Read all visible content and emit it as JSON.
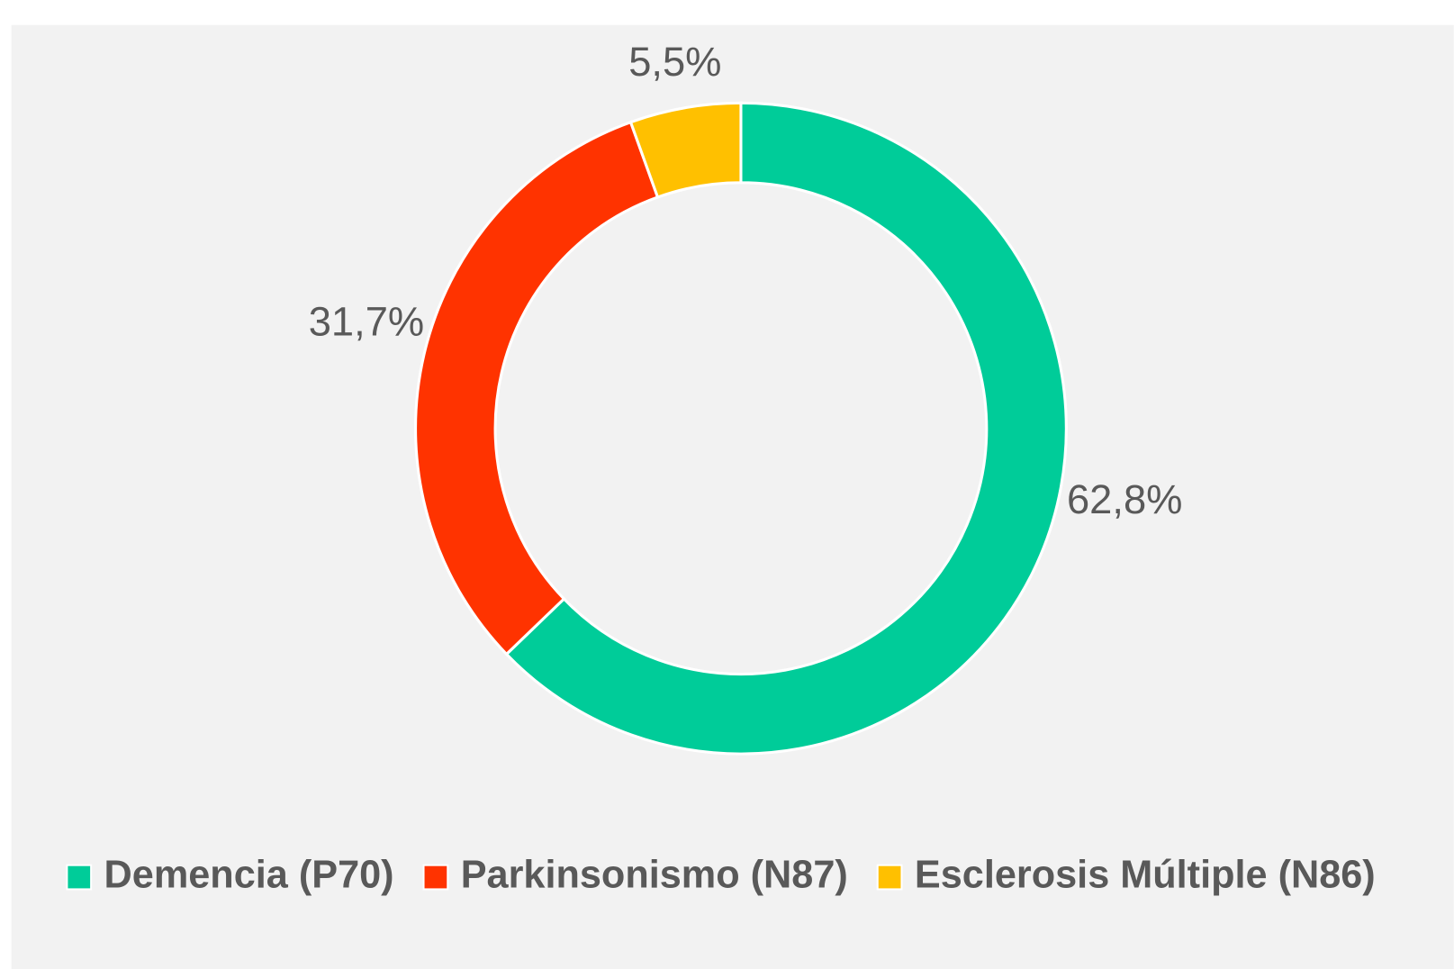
{
  "chart_data": {
    "type": "donut",
    "categories": [
      "Demencia (P70)",
      "Parkinsonismo (N87)",
      "Esclerosis Múltiple (N86)"
    ],
    "series": [
      {
        "values": [
          62.8,
          31.7,
          5.5
        ],
        "value_labels": [
          "62,8%",
          "31,7%",
          "5,5%"
        ],
        "colors": [
          "#00CC99",
          "#FF3300",
          "#FFC000"
        ]
      }
    ],
    "legend": "bottom"
  }
}
